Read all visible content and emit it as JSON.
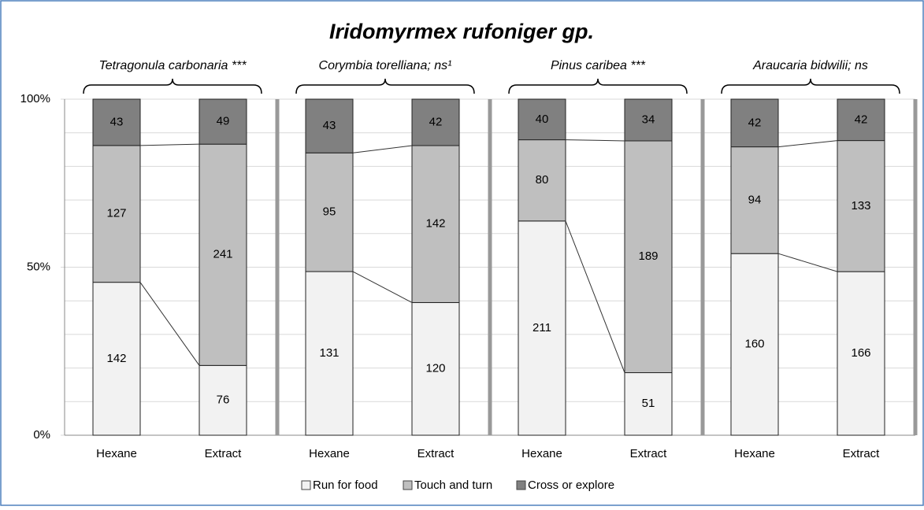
{
  "chart_data": {
    "type": "stacked_bar_percent",
    "title": "Iridomyrmex rufoniger gp.",
    "groups": [
      "Tetragonula carbonaria ***",
      "Corymbia torelliana; ns¹",
      "Pinus caribea ***",
      "Araucaria bidwilii; ns"
    ],
    "categories": [
      "Hexane",
      "Extract",
      "Hexane",
      "Extract",
      "Hexane",
      "Extract",
      "Hexane",
      "Extract"
    ],
    "series": [
      {
        "name": "Run for food",
        "color": "#f2f2f2",
        "values": [
          142,
          76,
          131,
          120,
          211,
          51,
          160,
          166
        ]
      },
      {
        "name": "Touch and turn",
        "color": "#bfbfbf",
        "values": [
          127,
          241,
          95,
          142,
          80,
          189,
          94,
          133
        ]
      },
      {
        "name": "Cross or explore",
        "color": "#808080",
        "values": [
          43,
          49,
          43,
          42,
          40,
          34,
          42,
          42
        ]
      }
    ],
    "ylim": [
      0,
      100
    ],
    "yticks": [
      {
        "value": 0,
        "label": "0%"
      },
      {
        "value": 50,
        "label": "50%"
      },
      {
        "value": 100,
        "label": "100%"
      }
    ],
    "grid_step": 10,
    "legend": "bottom"
  }
}
